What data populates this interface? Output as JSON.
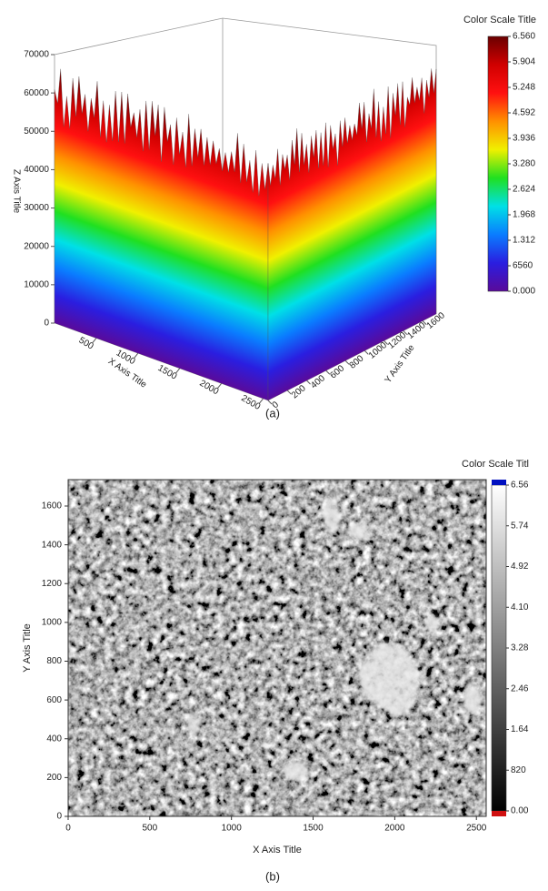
{
  "chart_data": [
    {
      "type": "surface3d",
      "caption": "(a)",
      "xlabel": "X Axis Title",
      "ylabel": "Y Axis Title",
      "zlabel": "Z Axis Title",
      "xlim": [
        0,
        2560
      ],
      "ylim": [
        0,
        1740
      ],
      "zlim": [
        0,
        70000
      ],
      "xticks": [
        500,
        1000,
        1500,
        2000,
        2500
      ],
      "yticks": [
        0,
        200,
        400,
        600,
        800,
        1000,
        1200,
        1400,
        1600
      ],
      "zticks": [
        0,
        10000,
        20000,
        30000,
        40000,
        50000,
        60000,
        70000
      ],
      "colorscale": {
        "title": "Color Scale Title",
        "lim": [
          0,
          65600
        ],
        "colors": [
          "#5a0a9a",
          "#2a1ee0",
          "#0a7cff",
          "#00e0e6",
          "#20e020",
          "#f0f000",
          "#ff9000",
          "#ff1010",
          "#d00000",
          "#6a0000"
        ],
        "ticks": [
          {
            "value": 65600,
            "label": "6.560"
          },
          {
            "value": 59040,
            "label": "5.904"
          },
          {
            "value": 52480,
            "label": "5.248"
          },
          {
            "value": 45920,
            "label": "4.592"
          },
          {
            "value": 39360,
            "label": "3.936"
          },
          {
            "value": 32800,
            "label": "3.280"
          },
          {
            "value": 26240,
            "label": "2.624"
          },
          {
            "value": 19680,
            "label": "1.968"
          },
          {
            "value": 13120,
            "label": "1.312"
          },
          {
            "value": 6560,
            "label": "6560"
          },
          {
            "value": 0,
            "label": "0.000"
          }
        ]
      }
    },
    {
      "type": "heatmap",
      "caption": "(b)",
      "xlabel": "X Axis Title",
      "ylabel": "Y Axis Title",
      "xlim": [
        0,
        2560
      ],
      "ylim": [
        0,
        1736
      ],
      "xticks": [
        0,
        500,
        1000,
        1500,
        2000,
        2500
      ],
      "yticks": [
        0,
        200,
        400,
        600,
        800,
        1000,
        1200,
        1400,
        1600
      ],
      "colorscale": {
        "title": "Color Scale Titl",
        "lim": [
          0,
          65600
        ],
        "colors": [
          "#000000",
          "#ffffff"
        ],
        "under_color": "#d01010",
        "over_color": "#0010c0",
        "ticks": [
          {
            "value": 65600,
            "label": "6.56"
          },
          {
            "value": 57400,
            "label": "5.74"
          },
          {
            "value": 49200,
            "label": "4.92"
          },
          {
            "value": 41000,
            "label": "4.10"
          },
          {
            "value": 32800,
            "label": "3.28"
          },
          {
            "value": 24600,
            "label": "2.46"
          },
          {
            "value": 16400,
            "label": "1.64"
          },
          {
            "value": 8200,
            "label": "820"
          },
          {
            "value": 0,
            "label": "0.00"
          }
        ]
      }
    }
  ]
}
